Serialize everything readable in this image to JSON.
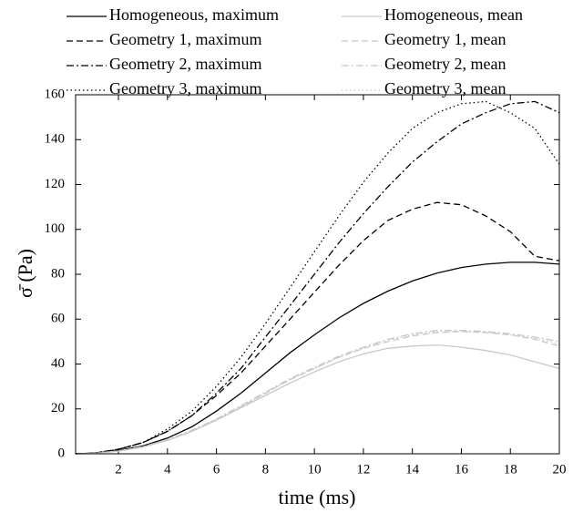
{
  "chart_data": {
    "type": "line",
    "xlabel": "time (ms)",
    "ylabel": "σ̄ (Pa)",
    "x": [
      0.25,
      1,
      2,
      3,
      4,
      5,
      6,
      7,
      8,
      9,
      10,
      11,
      12,
      13,
      14,
      15,
      16,
      17,
      18,
      19,
      20
    ],
    "xlim": [
      0.25,
      20
    ],
    "xticks": [
      2,
      4,
      6,
      8,
      10,
      12,
      14,
      16,
      18,
      20
    ],
    "ylim": [
      0,
      160
    ],
    "yticks": [
      0,
      20,
      40,
      60,
      80,
      100,
      120,
      140,
      160
    ],
    "legend": "top",
    "series": [
      {
        "name": "Homogeneous, maximum",
        "color": "#000000",
        "style": "solid",
        "values": [
          0,
          0.3,
          1.5,
          3.5,
          7,
          12,
          19,
          27,
          36,
          45,
          53,
          60.5,
          67,
          72.5,
          77,
          80.5,
          83,
          84.5,
          85.3,
          85.3,
          84.5
        ]
      },
      {
        "name": "Homogeneous, mean",
        "color": "#c8c8c8",
        "style": "solid",
        "values": [
          0,
          0.2,
          1.2,
          3,
          6,
          10,
          15,
          20.5,
          26,
          31.5,
          36.5,
          41,
          44.5,
          47,
          48,
          48.5,
          47.5,
          46,
          44,
          41,
          38
        ]
      },
      {
        "name": "Geometry 1, maximum",
        "color": "#000000",
        "style": "dashed",
        "values": [
          0,
          0.3,
          2,
          5,
          10,
          17,
          26,
          36,
          48,
          60,
          72,
          84,
          95,
          104,
          109,
          112,
          111,
          106,
          99,
          88,
          86
        ]
      },
      {
        "name": "Geometry 1, mean",
        "color": "#c8c8c8",
        "style": "dashed",
        "values": [
          0,
          0.2,
          1.2,
          3,
          6,
          10,
          15,
          21,
          27,
          33,
          38,
          43,
          47,
          50,
          52.5,
          54,
          54.5,
          54,
          53,
          51,
          48
        ]
      },
      {
        "name": "Geometry 2, maximum",
        "color": "#000000",
        "style": "dashdot",
        "values": [
          0,
          0.3,
          2,
          5,
          10,
          17,
          27,
          38,
          52,
          66,
          80,
          94,
          107,
          119,
          130,
          139,
          147,
          152,
          156,
          157,
          152
        ]
      },
      {
        "name": "Geometry 2, mean",
        "color": "#c8c8c8",
        "style": "dashdot",
        "values": [
          0,
          0.2,
          1.3,
          3.2,
          6.3,
          10.5,
          15.5,
          21.5,
          27.5,
          33.5,
          38.5,
          43.5,
          47.5,
          51,
          53.5,
          55,
          55,
          54.5,
          53.5,
          52,
          50
        ]
      },
      {
        "name": "Geometry 3, maximum",
        "color": "#000000",
        "style": "dotted",
        "values": [
          0,
          0.3,
          2,
          5,
          11,
          19,
          30,
          43,
          58,
          74,
          90,
          106,
          121,
          134,
          145,
          152,
          156,
          157,
          152,
          145,
          129
        ]
      },
      {
        "name": "Geometry 3, mean",
        "color": "#c8c8c8",
        "style": "dotted",
        "values": [
          0,
          0.2,
          1.2,
          3.1,
          6.1,
          10.2,
          15.2,
          21,
          27,
          33,
          38,
          43,
          47,
          50.5,
          53,
          54.5,
          54.5,
          54,
          53,
          51.5,
          49
        ]
      }
    ]
  }
}
